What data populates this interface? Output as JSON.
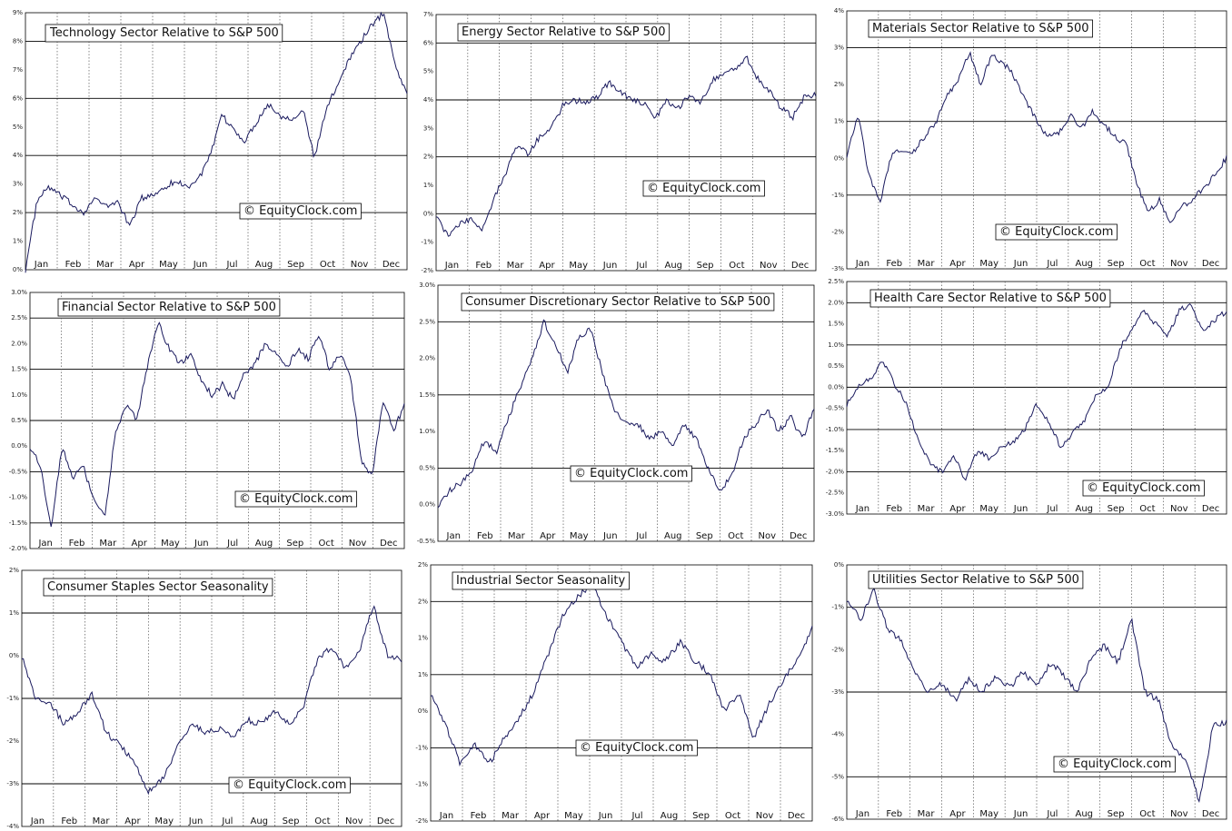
{
  "watermark": "© EquityClock.com",
  "colors": {
    "line": "#1a1a5e",
    "grid": "#000000",
    "vgrid": "#555555"
  },
  "months": [
    "Jan",
    "Feb",
    "Mar",
    "Apr",
    "May",
    "Jun",
    "Jul",
    "Aug",
    "Sep",
    "Oct",
    "Nov",
    "Dec"
  ],
  "chart_data": [
    {
      "type": "line",
      "title": "Technology Sector Relative to S&P 500",
      "yticks": [
        "9%",
        "8%",
        "7%",
        "6%",
        "5%",
        "4%",
        "3%",
        "2%",
        "1%",
        "0%"
      ],
      "ylim": [
        0,
        9
      ],
      "points": [
        0,
        2.4,
        2.9,
        2.6,
        2.3,
        2.0,
        2.5,
        2.2,
        2.4,
        1.5,
        2.5,
        2.6,
        2.9,
        3.1,
        2.9,
        3.2,
        4.0,
        5.4,
        4.9,
        4.5,
        5.2,
        5.8,
        5.4,
        5.3,
        5.6,
        3.9,
        5.6,
        6.5,
        7.4,
        8.0,
        8.6,
        9.0,
        7.1,
        6.2
      ]
    },
    {
      "type": "line",
      "title": "Energy Sector Relative to S&P 500",
      "yticks": [
        "7%",
        "6%",
        "5%",
        "4%",
        "3%",
        "2%",
        "1%",
        "0%",
        "-1%",
        "-2%"
      ],
      "ylim": [
        -2,
        7
      ],
      "points": [
        0,
        -0.8,
        -0.4,
        -0.2,
        -0.5,
        0.5,
        1.4,
        2.4,
        2.1,
        2.7,
        3.0,
        3.8,
        4.0,
        3.9,
        4.1,
        4.6,
        4.3,
        4.0,
        3.9,
        3.3,
        4.0,
        3.7,
        4.2,
        3.9,
        4.7,
        4.9,
        5.1,
        5.5,
        4.7,
        4.3,
        3.7,
        3.4,
        4.1,
        4.2
      ]
    },
    {
      "type": "line",
      "title": "Materials Sector Relative to S&P 500",
      "yticks": [
        "4%",
        "3%",
        "2%",
        "1%",
        "0%",
        "-1%",
        "-2%",
        "-3%"
      ],
      "ylim": [
        -3,
        4
      ],
      "points": [
        0.1,
        1.2,
        -0.5,
        -1.2,
        0.1,
        0.2,
        0.2,
        0.6,
        1.0,
        1.7,
        2.1,
        2.9,
        2.0,
        2.8,
        2.6,
        2.2,
        1.6,
        1.0,
        0.6,
        0.7,
        1.2,
        0.8,
        1.3,
        0.9,
        0.6,
        0.4,
        -0.7,
        -1.5,
        -1.1,
        -1.8,
        -1.3,
        -1.1,
        -0.8,
        -0.4,
        0.0
      ]
    },
    {
      "type": "line",
      "title": "Financial Sector Relative to S&P 500",
      "yticks": [
        "3.0%",
        "2.5%",
        "2.0%",
        "1.5%",
        "1.0%",
        "0.5%",
        "0.0%",
        "-0.5%",
        "-1.0%",
        "-1.5%",
        "-2.0%"
      ],
      "ylim": [
        -2,
        3
      ],
      "points": [
        0,
        -0.4,
        -1.6,
        0.0,
        -0.6,
        -0.4,
        -1.1,
        -1.4,
        0.3,
        0.8,
        0.5,
        1.6,
        2.4,
        1.9,
        1.6,
        1.8,
        1.3,
        1.0,
        1.2,
        0.9,
        1.4,
        1.6,
        2.0,
        1.8,
        1.5,
        1.9,
        1.7,
        2.2,
        1.5,
        1.8,
        1.3,
        -0.3,
        -0.6,
        0.9,
        0.3,
        0.8
      ]
    },
    {
      "type": "line",
      "title": "Consumer Discretionary Sector Relative to S&P 500",
      "yticks": [
        "3.0%",
        "2.5%",
        "2.0%",
        "1.5%",
        "1.0%",
        "0.5%",
        "0.0%",
        "-0.5%"
      ],
      "ylim": [
        -0.5,
        3
      ],
      "points": [
        0,
        0.2,
        0.3,
        0.5,
        0.9,
        0.7,
        1.2,
        1.6,
        2.0,
        2.5,
        2.2,
        1.8,
        2.3,
        2.4,
        1.8,
        1.3,
        1.1,
        1.1,
        0.9,
        1.0,
        0.8,
        1.1,
        0.9,
        0.5,
        0.2,
        0.4,
        0.9,
        1.1,
        1.3,
        1.0,
        1.2,
        0.9,
        1.3
      ]
    },
    {
      "type": "line",
      "title": "Health Care Sector Relative to S&P 500",
      "yticks": [
        "2.5%",
        "2.0%",
        "1.5%",
        "1.0%",
        "0.5%",
        "0.0%",
        "-0.5%",
        "-1.0%",
        "-1.5%",
        "-2.0%",
        "-2.5%",
        "-3.0%"
      ],
      "ylim": [
        -3,
        2.5
      ],
      "points": [
        -0.4,
        0,
        0.2,
        0.6,
        0.1,
        -0.4,
        -1.2,
        -1.8,
        -2.0,
        -1.6,
        -2.2,
        -1.5,
        -1.7,
        -1.4,
        -1.3,
        -1.0,
        -0.4,
        -0.8,
        -1.4,
        -1.1,
        -0.8,
        -0.2,
        0.0,
        0.9,
        1.4,
        1.8,
        1.5,
        1.2,
        1.8,
        2.0,
        1.3,
        1.6,
        1.8
      ]
    },
    {
      "type": "line",
      "title": "Consumer Staples Sector Seasonality",
      "yticks": [
        "2%",
        "1%",
        "0%",
        "-1%",
        "-2%",
        "-3%",
        "-4%"
      ],
      "ylim": [
        -4,
        2
      ],
      "points": [
        0,
        -1.0,
        -1.1,
        -1.6,
        -1.3,
        -0.9,
        -1.8,
        -2.1,
        -2.5,
        -3.2,
        -2.9,
        -2.2,
        -1.6,
        -1.8,
        -1.7,
        -1.9,
        -1.5,
        -1.6,
        -1.3,
        -1.6,
        -1.2,
        -0.1,
        0.2,
        -0.3,
        0.1,
        1.2,
        0.0,
        -0.1
      ]
    },
    {
      "type": "line",
      "title": "Industrial Sector Seasonality",
      "yticks": [
        "2%",
        "2%",
        "1%",
        "1%",
        "0%",
        "-1%",
        "-1%",
        "-2%"
      ],
      "ylim": [
        -2,
        2
      ],
      "points": [
        0,
        -0.5,
        -1.1,
        -0.8,
        -1.1,
        -0.7,
        -0.4,
        0.0,
        0.6,
        1.2,
        1.5,
        1.7,
        1.2,
        0.8,
        0.4,
        0.6,
        0.5,
        0.8,
        0.5,
        0.3,
        -0.3,
        0.0,
        -0.7,
        -0.2,
        0.2,
        0.5,
        1.0
      ]
    },
    {
      "type": "line",
      "title": "Utilities Sector Relative to S&P 500",
      "yticks": [
        "0%",
        "-1%",
        "-2%",
        "-3%",
        "-4%",
        "-5%",
        "-6%"
      ],
      "ylim": [
        -6,
        0
      ],
      "points": [
        -0.8,
        -1.3,
        -0.6,
        -1.5,
        -1.8,
        -2.5,
        -3.0,
        -2.8,
        -3.2,
        -2.7,
        -3.0,
        -2.6,
        -2.9,
        -2.5,
        -2.9,
        -2.3,
        -2.6,
        -3.0,
        -2.2,
        -1.9,
        -2.3,
        -1.3,
        -3.0,
        -3.2,
        -4.3,
        -4.6,
        -5.6,
        -3.8,
        -3.7
      ]
    }
  ]
}
